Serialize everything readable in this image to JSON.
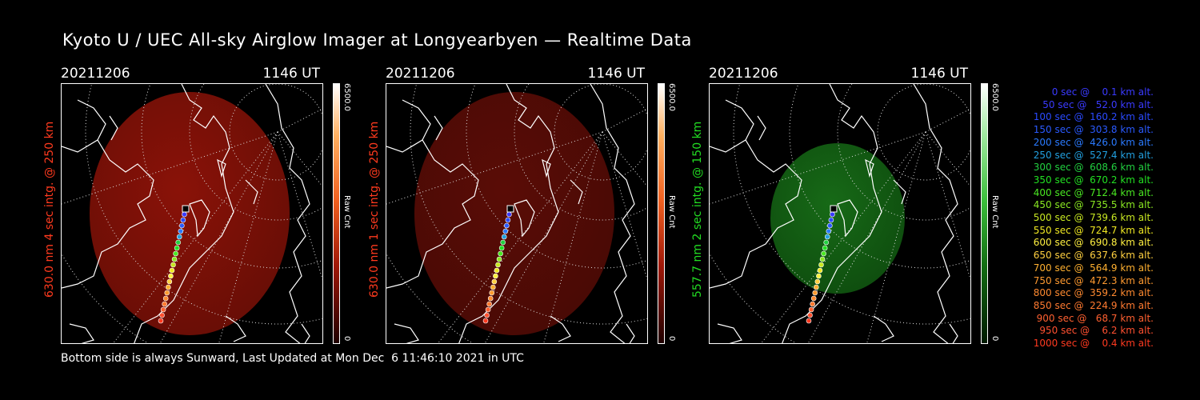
{
  "title": "Kyoto U / UEC All-sky Airglow Imager at Longyearbyen — Realtime Data",
  "footer": "Bottom side is always Sunward, Last Updated at Mon Dec  6 11:46:10 2021 in UTC",
  "panels": [
    {
      "date": "20211206",
      "time": "1146 UT",
      "ylabel": "630.0 nm 4 sec intg. @ 250 km",
      "label_color": "#ff3a1e",
      "scale_max": "6500.0",
      "scale_min": "0",
      "scale_unit": "Raw Cnt",
      "image_color": "red"
    },
    {
      "date": "20211206",
      "time": "1146 UT",
      "ylabel": "630.0 nm 1 sec intg. @ 250 km",
      "label_color": "#ff3a1e",
      "scale_max": "6500.0",
      "scale_min": "0",
      "scale_unit": "Raw Cnt",
      "image_color": "darkred"
    },
    {
      "date": "20211206",
      "time": "1146 UT",
      "ylabel": "557.7 nm 2 sec intg. @ 150 km",
      "label_color": "#22dd22",
      "scale_max": "6500.0",
      "scale_min": "0",
      "scale_unit": "Raw Cnt",
      "image_color": "green"
    }
  ],
  "legend": [
    {
      "text": "0 sec @    0.1 km alt.",
      "color": "#3a3aff"
    },
    {
      "text": "50 sec @   52.0 km alt.",
      "color": "#3a3aff"
    },
    {
      "text": "100 sec @  160.2 km alt.",
      "color": "#2a4aff"
    },
    {
      "text": "150 sec @  303.8 km alt.",
      "color": "#2a5aff"
    },
    {
      "text": "200 sec @  426.0 km alt.",
      "color": "#2a7aff"
    },
    {
      "text": "250 sec @  527.4 km alt.",
      "color": "#22a0e0"
    },
    {
      "text": "300 sec @  608.6 km alt.",
      "color": "#22d040"
    },
    {
      "text": "350 sec @  670.2 km alt.",
      "color": "#22e022"
    },
    {
      "text": "400 sec @  712.4 km alt.",
      "color": "#4ae822"
    },
    {
      "text": "450 sec @  735.5 km alt.",
      "color": "#8ae822"
    },
    {
      "text": "500 sec @  739.6 km alt.",
      "color": "#c8e822"
    },
    {
      "text": "550 sec @  724.7 km alt.",
      "color": "#f0e822"
    },
    {
      "text": "600 sec @  690.8 km alt.",
      "color": "#fff040"
    },
    {
      "text": "650 sec @  637.6 km alt.",
      "color": "#ffd040"
    },
    {
      "text": "700 sec @  564.9 km alt.",
      "color": "#ffb030"
    },
    {
      "text": "750 sec @  472.3 km alt.",
      "color": "#ff9a30"
    },
    {
      "text": "800 sec @  359.2 km alt.",
      "color": "#ff8a30"
    },
    {
      "text": "850 sec @  224.9 km alt.",
      "color": "#ff7a30"
    },
    {
      "text": "900 sec @   68.7 km alt.",
      "color": "#ff6030"
    },
    {
      "text": "950 sec @    6.2 km alt.",
      "color": "#ff5030"
    },
    {
      "text": "1000 sec @    0.4 km alt.",
      "color": "#ff3a20"
    }
  ]
}
